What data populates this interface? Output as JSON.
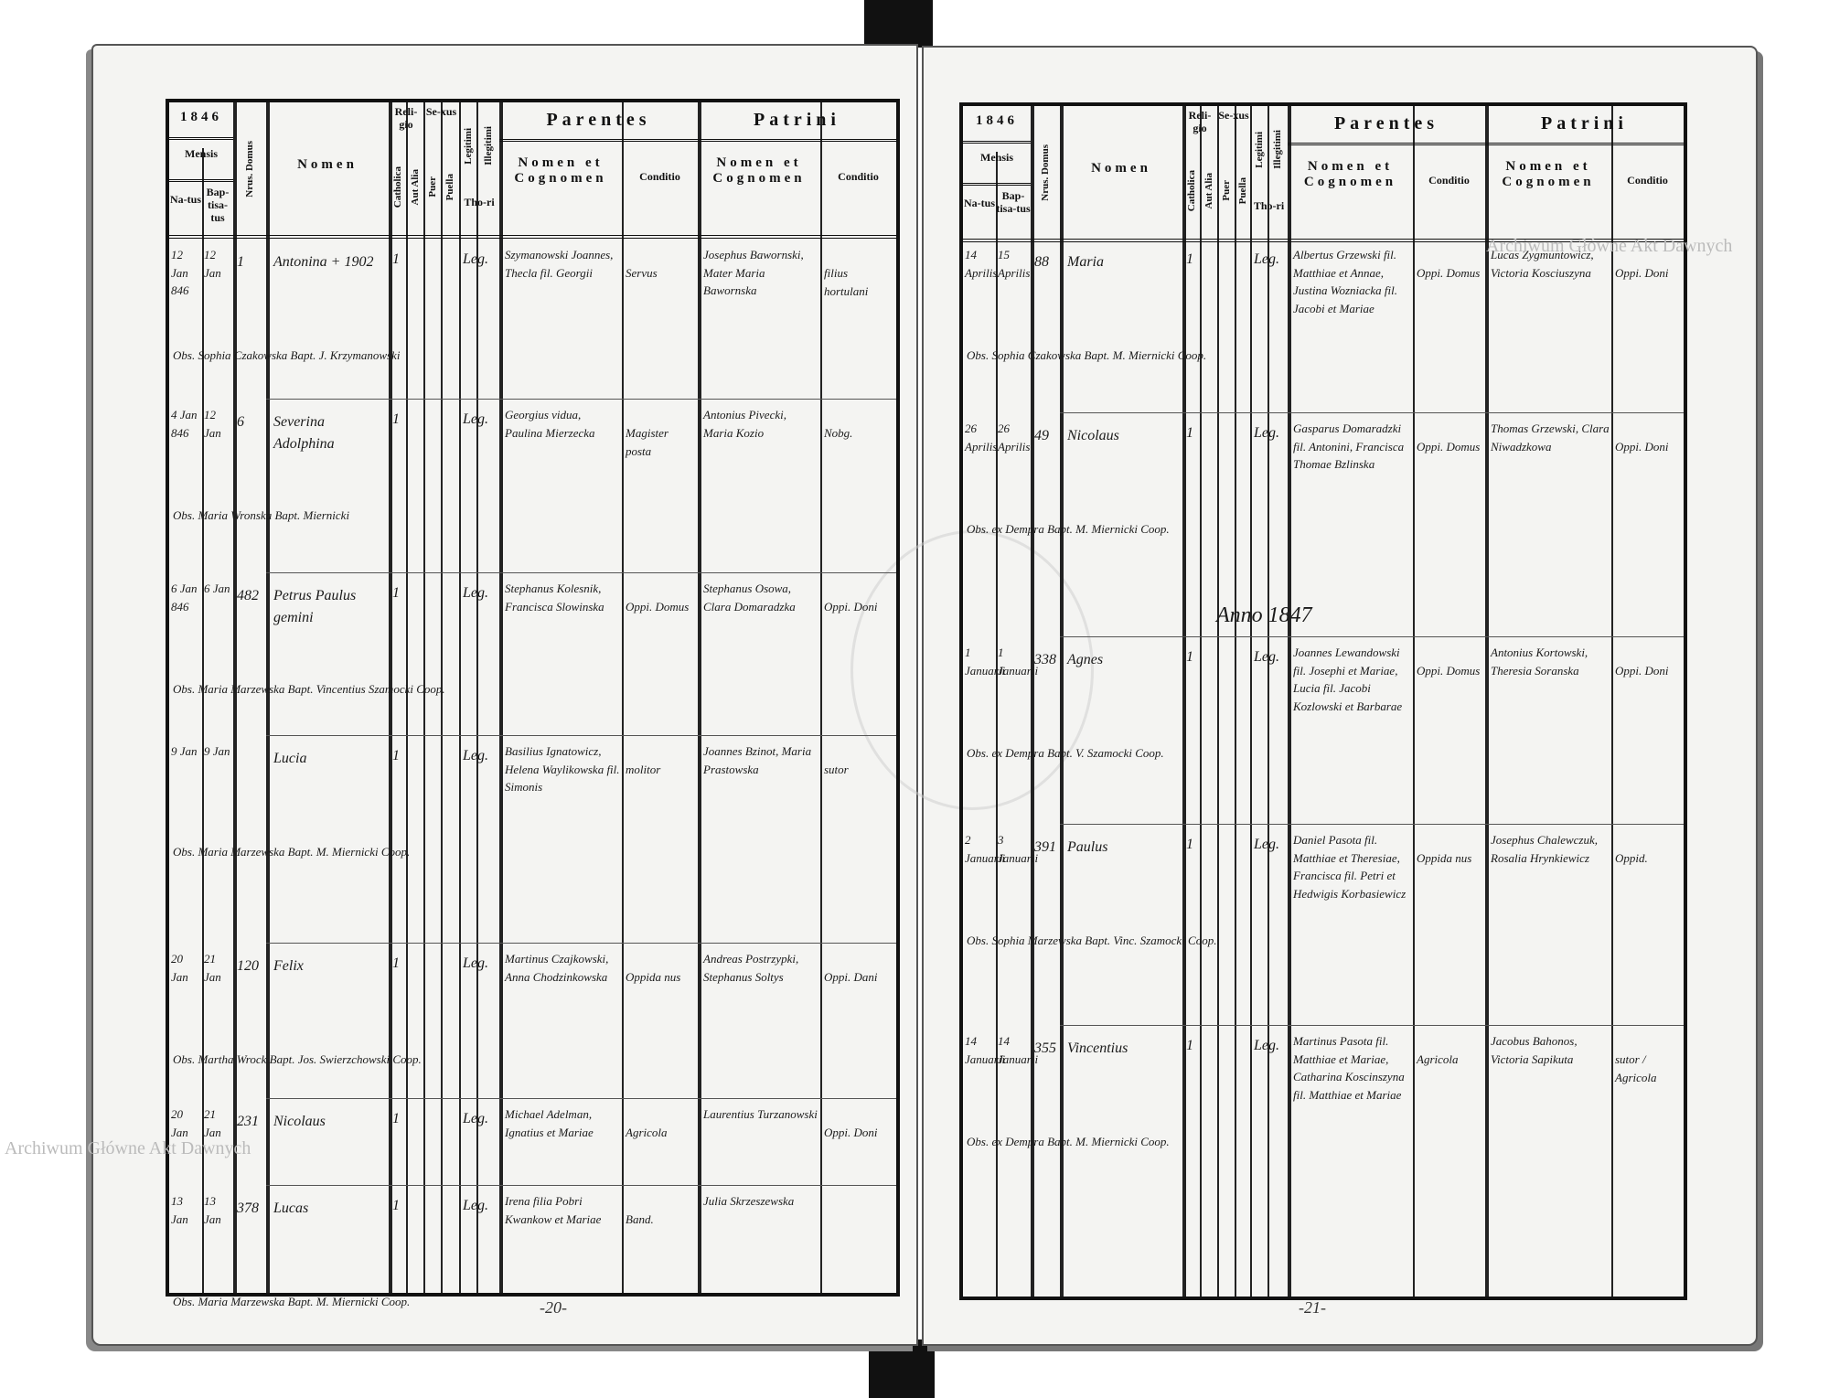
{
  "watermarks": [
    "Archiwum Główne Akt Dawnych",
    "Archiwum Główne Akt Dawnych"
  ],
  "header": {
    "year_left": "1846",
    "year_right": "1846",
    "mensis": "Mensis",
    "natus": "Na-tus",
    "baptisatus": "Bap-tisa-tus",
    "domus": "Nrus. Domus",
    "nomen": "Nomen",
    "religio": "Reli-gio",
    "catholica": "Catholica",
    "aut_alia": "Aut Alia",
    "sexus": "Se-xus",
    "puer": "Puer",
    "puella": "Puella",
    "legitimi": "Legitimi",
    "illegitimi": "Illegitimi",
    "thori": "Tho-ri",
    "parentes": "Parentes",
    "patrini": "Patrini",
    "nomen_et_cognomen": "Nomen et Cognomen",
    "conditio": "Conditio"
  },
  "left_page": {
    "page_number": "-20-",
    "entries": [
      {
        "natus": "12 Jan 846",
        "baptisatus": "12 Jan",
        "domus": "1",
        "nomen": "Antonina  + 1902",
        "parentes": "Szymanowski Joannes, Thecla fil. Georgii",
        "conditio": "Servus",
        "patrini": "Josephus Bawornski, Mater Maria Bawornska",
        "patrini_conditio": "filius hortulani",
        "note": "Obs. Sophia Czakowska  Bapt. J. Krzymanowski"
      },
      {
        "natus": "4 Jan 846",
        "baptisatus": "12 Jan",
        "domus": "6",
        "nomen": "Severina Adolphina",
        "parentes": "Georgius vidua, Paulina Mierzecka",
        "conditio": "Magister posta",
        "patrini": "Antonius Pivecki, Maria Kozio",
        "patrini_conditio": "Nobg.",
        "note": "Obs. Maria Wronska  Bapt. Miernicki"
      },
      {
        "natus": "6 Jan 846",
        "baptisatus": "6 Jan",
        "domus": "482",
        "nomen": "Petrus Paulus gemini",
        "parentes": "Stephanus Kolesnik, Francisca Slowinska",
        "conditio": "Oppi. Domus",
        "patrini": "Stephanus Osowa, Clara Domaradzka",
        "patrini_conditio": "Oppi. Doni",
        "note": "Obs. Maria Marzewska  Bapt. Vincentius Szamocki Coop."
      },
      {
        "natus": "9 Jan",
        "baptisatus": "9 Jan",
        "domus": "",
        "nomen": "Lucia",
        "parentes": "Basilius Ignatowicz, Helena Waylikowska fil. Simonis",
        "conditio": "molitor",
        "patrini": "Joannes Bzinot, Maria Prastowska",
        "patrini_conditio": "sutor",
        "note": "Obs. Maria Marzewska  Bapt. M. Miernicki Coop."
      },
      {
        "natus": "20 Jan",
        "baptisatus": "21 Jan",
        "domus": "120",
        "nomen": "Felix",
        "parentes": "Martinus Czajkowski, Anna Chodzinkowska",
        "conditio": "Oppida nus",
        "patrini": "Andreas Postrzypki, Stephanus Soltys",
        "patrini_conditio": "Oppi. Dani",
        "note": "Obs. Martha Wrock  Bapt. Jos. Swierzchowski Coop."
      },
      {
        "natus": "20 Jan",
        "baptisatus": "21 Jan",
        "domus": "231",
        "nomen": "Nicolaus",
        "parentes": "Michael Adelman, Ignatius et Mariae",
        "conditio": "Agricola",
        "patrini": "Laurentius Turzanowski",
        "patrini_conditio": "Oppi. Doni",
        "note": ""
      },
      {
        "natus": "13 Jan",
        "baptisatus": "13 Jan",
        "domus": "378",
        "nomen": "Lucas",
        "parentes": "Irena filia Pobri Kwankow et Mariae",
        "conditio": "Band.",
        "patrini": "Julia Skrzeszewska",
        "patrini_conditio": "",
        "note": "Obs. Maria Marzewska  Bapt. M. Miernicki Coop."
      }
    ]
  },
  "right_page": {
    "page_number": "-21-",
    "anno": "Anno 1847",
    "entries": [
      {
        "natus": "14 Aprilis",
        "baptisatus": "15 Aprilis",
        "domus": "88",
        "nomen": "Maria",
        "parentes": "Albertus Grzewski fil. Matthiae et Annae, Justina Wozniacka fil. Jacobi et Mariae",
        "conditio": "Oppi. Domus",
        "patrini": "Lucas Zygmuntowicz, Victoria Kosciuszyna",
        "patrini_conditio": "Oppi. Doni",
        "note": "Obs. Sophia Czakowska  Bapt. M. Miernicki Coop."
      },
      {
        "natus": "26 Aprilis",
        "baptisatus": "26 Aprilis",
        "domus": "49",
        "nomen": "Nicolaus",
        "parentes": "Gasparus Domaradzki fil. Antonini, Francisca Thomae Bzlinska",
        "conditio": "Oppi. Domus",
        "patrini": "Thomas Grzewski, Clara Niwadzkowa",
        "patrini_conditio": "Oppi. Doni",
        "note": "Obs. ex Dempra  Bapt. M. Miernicki Coop."
      },
      {
        "natus": "1 Januarii",
        "baptisatus": "1 Januarii",
        "domus": "338",
        "nomen": "Agnes",
        "parentes": "Joannes Lewandowski fil. Josephi et Mariae, Lucia fil. Jacobi Kozlowski et Barbarae",
        "conditio": "Oppi. Domus",
        "patrini": "Antonius Kortowski, Theresia Soranska",
        "patrini_conditio": "Oppi. Doni",
        "note": "Obs. ex Dempra  Bapt. V. Szamocki Coop."
      },
      {
        "natus": "2 Januarii",
        "baptisatus": "3 Januarii",
        "domus": "391",
        "nomen": "Paulus",
        "parentes": "Daniel Pasota fil. Matthiae et Theresiae, Francisca fil. Petri et Hedwigis Korbasiewicz",
        "conditio": "Oppida nus",
        "patrini": "Josephus Chalewczuk, Rosalia Hrynkiewicz",
        "patrini_conditio": "Oppid.",
        "note": "Obs. Sophia Marzewska  Bapt. Vinc. Szamocki Coop."
      },
      {
        "natus": "14 Januarii",
        "baptisatus": "14 Januarii",
        "domus": "355",
        "nomen": "Vincentius",
        "parentes": "Martinus Pasota fil. Matthiae et Mariae, Catharina Koscinszyna fil. Matthiae et Mariae",
        "conditio": "Agricola",
        "patrini": "Jacobus Bahonos, Victoria Sapikuta",
        "patrini_conditio": "sutor / Agricola",
        "note": "Obs. ex Dempra  Bapt. M. Miernicki Coop."
      }
    ]
  }
}
